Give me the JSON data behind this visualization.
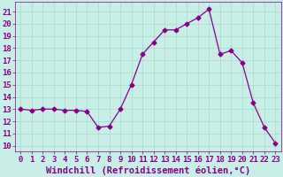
{
  "x": [
    0,
    1,
    2,
    3,
    4,
    5,
    6,
    7,
    8,
    9,
    10,
    11,
    12,
    13,
    14,
    15,
    16,
    17,
    18,
    19,
    20,
    21,
    22,
    23
  ],
  "y": [
    13,
    12.9,
    13,
    13,
    12.9,
    12.9,
    12.8,
    11.5,
    11.6,
    13,
    15,
    17.5,
    18.5,
    19.5,
    19.5,
    20,
    20.5,
    21.2,
    17.5,
    17.8,
    16.8,
    13.5,
    11.5,
    10.2
  ],
  "line_color": "#880088",
  "marker": "D",
  "marker_size": 2.5,
  "background_color": "#c8eee8",
  "grid_color": "#aad8cc",
  "xlabel": "Windchill (Refroidissement éolien,°C)",
  "xlabel_fontsize": 7.5,
  "ylim": [
    9.5,
    21.8
  ],
  "xlim": [
    -0.5,
    23.5
  ],
  "yticks": [
    10,
    11,
    12,
    13,
    14,
    15,
    16,
    17,
    18,
    19,
    20,
    21
  ],
  "xticks": [
    0,
    1,
    2,
    3,
    4,
    5,
    6,
    7,
    8,
    9,
    10,
    11,
    12,
    13,
    14,
    15,
    16,
    17,
    18,
    19,
    20,
    21,
    22,
    23
  ],
  "tick_fontsize": 6.5,
  "tick_color": "#880088"
}
